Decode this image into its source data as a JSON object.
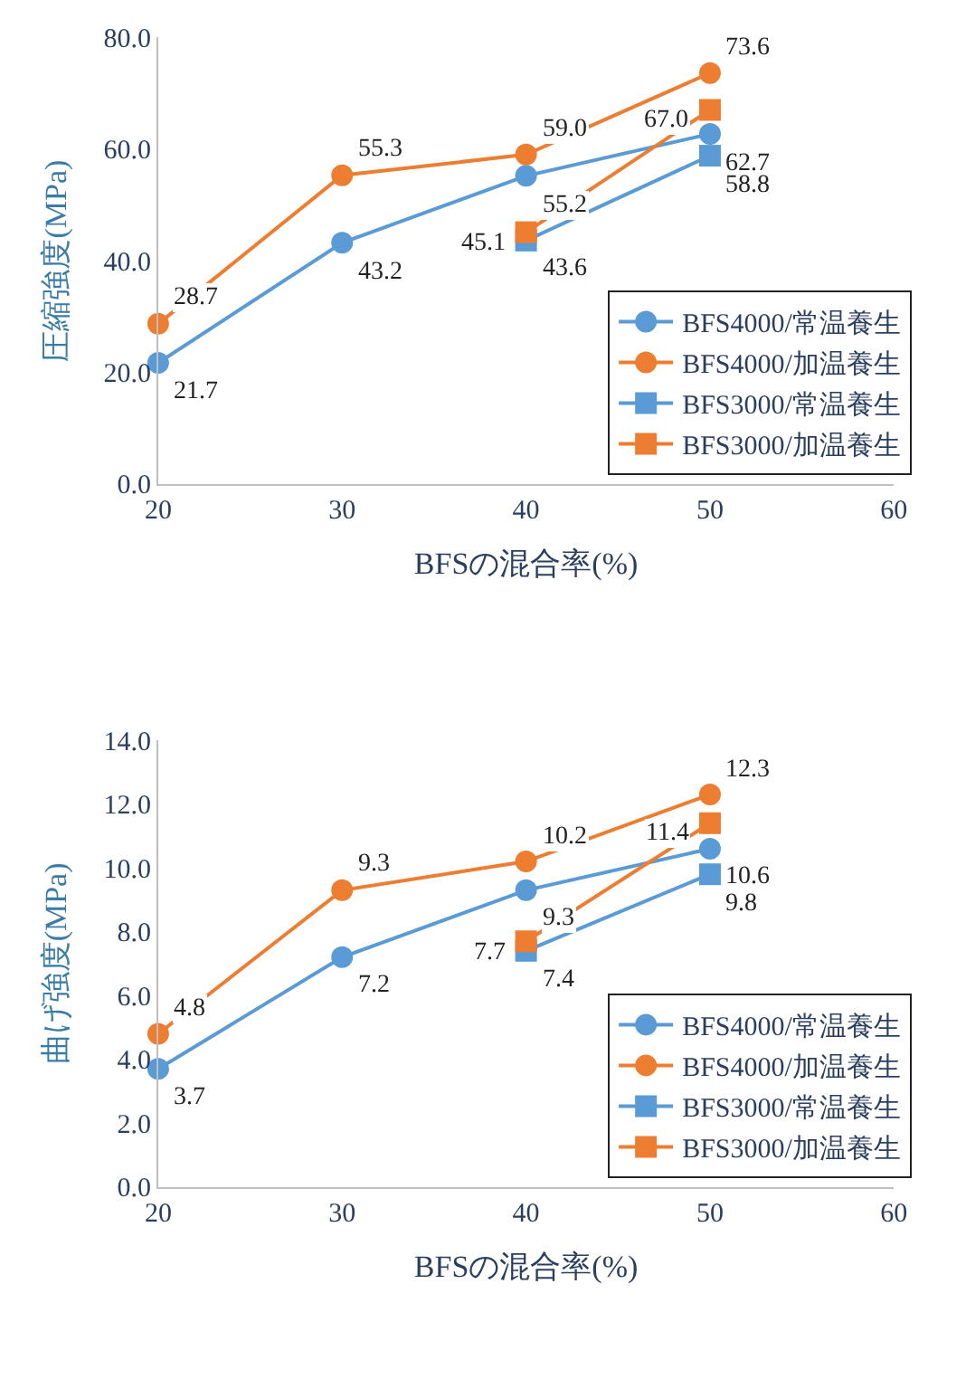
{
  "chart_data": [
    {
      "type": "line",
      "xlabel": "BFSの混合率(%)",
      "ylabel": "圧縮強度(MPa)",
      "xlim": [
        20,
        60
      ],
      "xticks": [
        20,
        30,
        40,
        50,
        60
      ],
      "ylim": [
        0,
        80
      ],
      "yticks": [
        {
          "value": 0,
          "label": "0.0"
        },
        {
          "value": 20,
          "label": "20.0"
        },
        {
          "value": 40,
          "label": "40.0"
        },
        {
          "value": 60,
          "label": "60.0"
        },
        {
          "value": 80,
          "label": "80.0"
        }
      ],
      "grid": false,
      "legend": "bottom right",
      "line_style": "solid",
      "series": [
        {
          "name": "BFS4000/常温養生",
          "color": "#5b9bd5",
          "marker": "circle",
          "x": [
            20,
            30,
            40,
            50
          ],
          "values": [
            21.7,
            43.2,
            55.2,
            62.7
          ],
          "value_labels": [
            "21.7",
            "43.2",
            "55.2",
            "62.7"
          ]
        },
        {
          "name": "BFS4000/加温養生",
          "color": "#ed7d31",
          "marker": "circle",
          "x": [
            20,
            30,
            40,
            50
          ],
          "values": [
            28.7,
            55.3,
            59.0,
            73.6
          ],
          "value_labels": [
            "28.7",
            "55.3",
            "59.0",
            "73.6"
          ]
        },
        {
          "name": "BFS3000/常温養生",
          "color": "#5b9bd5",
          "marker": "square",
          "x": [
            40,
            50
          ],
          "values": [
            43.6,
            58.8
          ],
          "value_labels": [
            "43.6",
            "58.8"
          ]
        },
        {
          "name": "BFS3000/加温養生",
          "color": "#ed7d31",
          "marker": "square",
          "x": [
            40,
            50
          ],
          "values": [
            45.1,
            67.0
          ],
          "value_labels": [
            "45.1",
            "67.0"
          ]
        }
      ]
    },
    {
      "type": "line",
      "xlabel": "BFSの混合率(%)",
      "ylabel": "曲げ強度(MPa)",
      "xlim": [
        20,
        60
      ],
      "xticks": [
        20,
        30,
        40,
        50,
        60
      ],
      "ylim": [
        0,
        14
      ],
      "yticks": [
        {
          "value": 0,
          "label": "0.0"
        },
        {
          "value": 2,
          "label": "2.0"
        },
        {
          "value": 4,
          "label": "4.0"
        },
        {
          "value": 6,
          "label": "6.0"
        },
        {
          "value": 8,
          "label": "8.0"
        },
        {
          "value": 10,
          "label": "10.0"
        },
        {
          "value": 12,
          "label": "12.0"
        },
        {
          "value": 14,
          "label": "14.0"
        }
      ],
      "grid": false,
      "legend": "bottom right",
      "line_style": "solid",
      "series": [
        {
          "name": "BFS4000/常温養生",
          "color": "#5b9bd5",
          "marker": "circle",
          "x": [
            20,
            30,
            40,
            50
          ],
          "values": [
            3.7,
            7.2,
            9.3,
            10.6
          ],
          "value_labels": [
            "3.7",
            "7.2",
            "9.3",
            "10.6"
          ]
        },
        {
          "name": "BFS4000/加温養生",
          "color": "#ed7d31",
          "marker": "circle",
          "x": [
            20,
            30,
            40,
            50
          ],
          "values": [
            4.8,
            9.3,
            10.2,
            12.3
          ],
          "value_labels": [
            "4.8",
            "9.3",
            "10.2",
            "12.3"
          ]
        },
        {
          "name": "BFS3000/常温養生",
          "color": "#5b9bd5",
          "marker": "square",
          "x": [
            40,
            50
          ],
          "values": [
            7.4,
            9.8
          ],
          "value_labels": [
            "7.4",
            "9.8"
          ]
        },
        {
          "name": "BFS3000/加温養生",
          "color": "#ed7d31",
          "marker": "square",
          "x": [
            40,
            50
          ],
          "values": [
            7.7,
            11.4
          ],
          "value_labels": [
            "7.7",
            "11.4"
          ]
        }
      ]
    }
  ]
}
